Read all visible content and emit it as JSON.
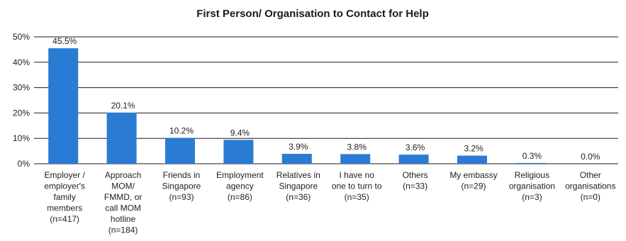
{
  "chart_data": {
    "type": "bar",
    "title": "First Person/ Organisation to Contact for Help",
    "xlabel": "",
    "ylabel": "",
    "ylim": [
      0,
      50
    ],
    "yticks": [
      "0%",
      "10%",
      "20%",
      "30%",
      "40%",
      "50%"
    ],
    "grid": true,
    "bar_color": "#2a7bd4",
    "categories": [
      [
        "Employer /",
        "employer's",
        "family",
        "members",
        "(n=417)"
      ],
      [
        "Approach",
        "MOM/",
        "FMMD, or",
        "call MOM",
        "hotline",
        "(n=184)"
      ],
      [
        "Friends in",
        "Singapore",
        "(n=93)"
      ],
      [
        "Employment",
        "agency",
        "(n=86)"
      ],
      [
        "Relatives in",
        "Singapore",
        "(n=36)"
      ],
      [
        "I have no",
        "one to turn to",
        "(n=35)"
      ],
      [
        "Others",
        "(n=33)"
      ],
      [
        "My embassy",
        "(n=29)"
      ],
      [
        "Religious",
        "organisation",
        "(n=3)"
      ],
      [
        "Other",
        "organisations",
        "(n=0)"
      ]
    ],
    "values": [
      45.5,
      20.1,
      10.2,
      9.4,
      3.9,
      3.8,
      3.6,
      3.2,
      0.3,
      0.0
    ],
    "data_labels": [
      "45.5%",
      "20.1%",
      "10.2%",
      "9.4%",
      "3.9%",
      "3.8%",
      "3.6%",
      "3.2%",
      "0.3%",
      "0.0%"
    ]
  }
}
